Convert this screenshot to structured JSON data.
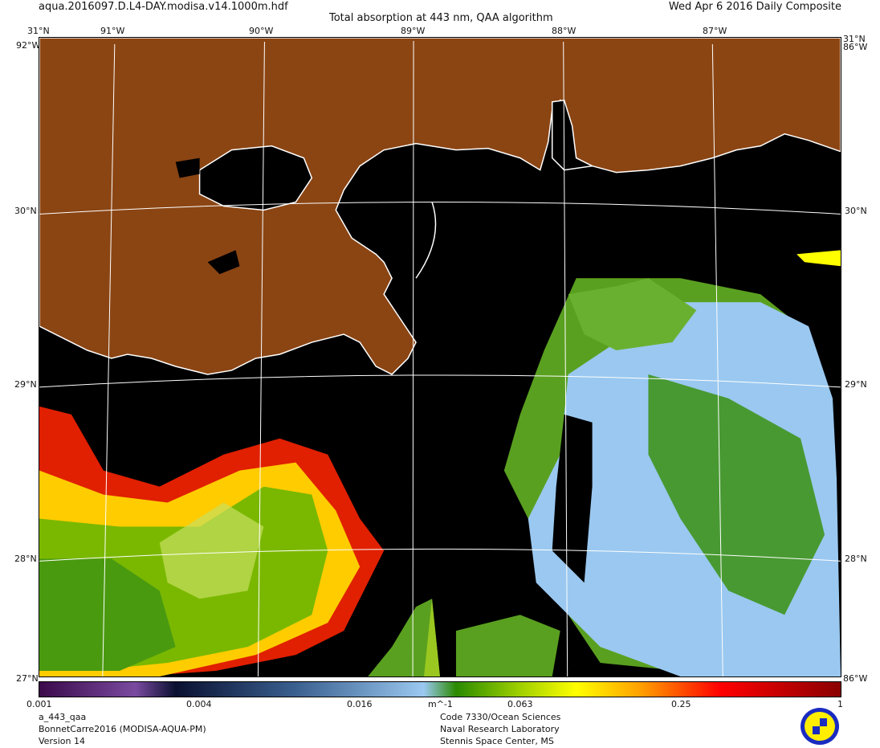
{
  "header": {
    "filename": "aqua.2016097.D.L4-DAY.modisa.v14.1000m.hdf",
    "date": "Wed Apr  6 2016 Daily Composite",
    "title": "Total absorption at 443 nm, QAA algorithm"
  },
  "map": {
    "lon_labels": [
      "91°W",
      "90°W",
      "89°W",
      "88°W",
      "87°W"
    ],
    "lat_labels": [
      "30°N",
      "29°N",
      "28°N"
    ],
    "corner_top_left": "31°N",
    "corner_top_right": "31°N",
    "corner_left_top_lon": "92°W",
    "corner_right_top_lon": "86°W",
    "corner_bottom_left": "27°N",
    "corner_bottom_right": "86°W",
    "colors": {
      "land": "#8b4513",
      "water_nodata": "#000000",
      "coast_grid": "#ffffff"
    }
  },
  "colorbar": {
    "scale": "log",
    "range": [
      0.001,
      1
    ],
    "unit": "m^-1",
    "tick_labels": [
      "0.001",
      "0.004",
      "0.016",
      "0.063",
      "0.25",
      "1"
    ],
    "colors": [
      "#3a0a4a",
      "#7a4aa0",
      "#0a1030",
      "#3a6090",
      "#9ac8f0",
      "#2a8a00",
      "#a0d000",
      "#ffff00",
      "#ffa000",
      "#ff0000",
      "#8a0000"
    ]
  },
  "footer": {
    "product": "a_443_qaa",
    "project": "BonnetCarre2016 (MODISA-AQUA-PM)",
    "version": "Version 14",
    "org1": "Code 7330/Ocean Sciences",
    "org2": "Naval Research Laboratory",
    "org3": "Stennis Space Center, MS"
  }
}
